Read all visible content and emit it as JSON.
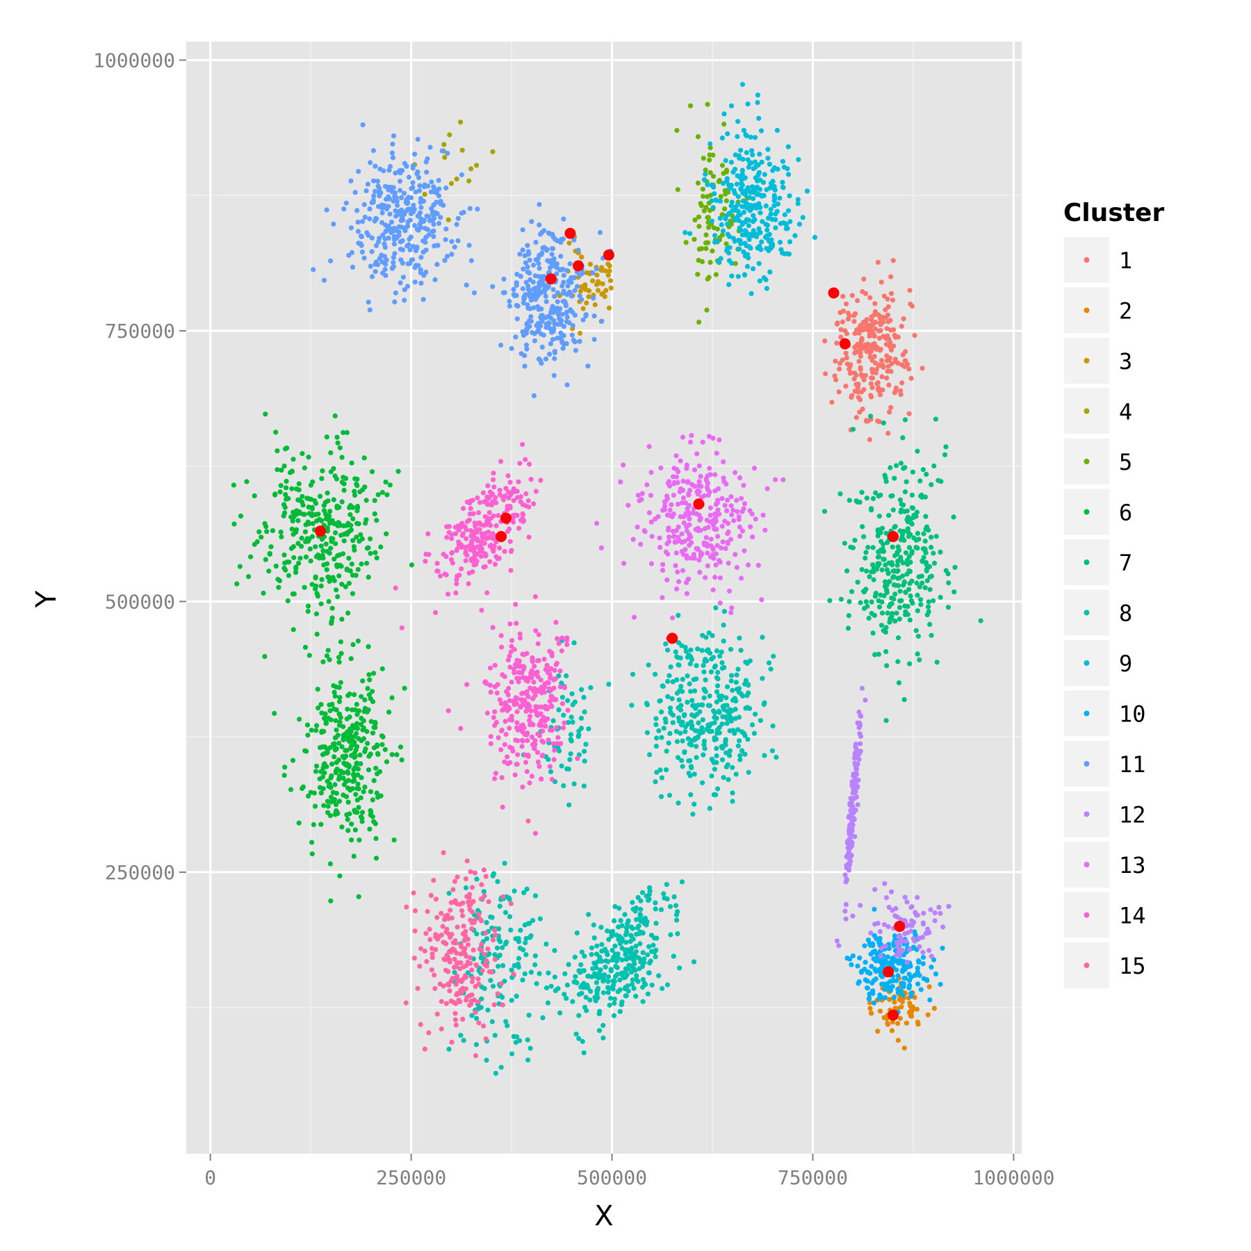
{
  "chart_data": {
    "type": "scatter",
    "title": "",
    "xlabel": "X",
    "ylabel": "Y",
    "xlim": [
      -30000,
      1010000
    ],
    "ylim": [
      -10000,
      1017000
    ],
    "grid": true,
    "x_ticks": [
      0,
      250000,
      500000,
      750000,
      1000000
    ],
    "x_tick_labels": [
      "0",
      "250000",
      "500000",
      "750000",
      "1000000"
    ],
    "y_ticks": [
      250000,
      500000,
      750000,
      1000000
    ],
    "y_tick_labels": [
      "250000",
      "500000",
      "750000",
      "1000000"
    ],
    "legend": {
      "title": "Cluster",
      "position": "right",
      "entries": [
        {
          "label": "1",
          "color": "#F8766D"
        },
        {
          "label": "2",
          "color": "#E58700"
        },
        {
          "label": "3",
          "color": "#C99800"
        },
        {
          "label": "4",
          "color": "#A3A500"
        },
        {
          "label": "5",
          "color": "#6BB100"
        },
        {
          "label": "6",
          "color": "#00BA38"
        },
        {
          "label": "7",
          "color": "#00BF7D"
        },
        {
          "label": "8",
          "color": "#00C0AF"
        },
        {
          "label": "9",
          "color": "#00BCD8"
        },
        {
          "label": "10",
          "color": "#00B0F6"
        },
        {
          "label": "11",
          "color": "#619CFF"
        },
        {
          "label": "12",
          "color": "#B983FF"
        },
        {
          "label": "13",
          "color": "#E76BF3"
        },
        {
          "label": "14",
          "color": "#FD61D1"
        },
        {
          "label": "15",
          "color": "#FF67A4"
        }
      ]
    },
    "clusters": [
      {
        "cluster": "1",
        "center": [
          822000,
          730000
        ],
        "sd": [
          22000,
          28000
        ],
        "rho": 0,
        "n": 260
      },
      {
        "cluster": "2",
        "center": [
          855000,
          125000
        ],
        "sd": [
          18000,
          14000
        ],
        "rho": 0,
        "n": 60
      },
      {
        "cluster": "3",
        "center": [
          470000,
          795000
        ],
        "sd": [
          15000,
          20000
        ],
        "rho": 0,
        "n": 60
      },
      {
        "cluster": "4",
        "center": [
          300000,
          900000
        ],
        "sd": [
          25000,
          25000
        ],
        "rho": 0,
        "n": 15
      },
      {
        "cluster": "5",
        "center": [
          625000,
          860000
        ],
        "sd": [
          18000,
          38000
        ],
        "rho": 0,
        "n": 90
      },
      {
        "cluster": "6a",
        "legend": "6",
        "center": [
          135000,
          565000
        ],
        "sd": [
          40000,
          38000
        ],
        "rho": 0,
        "n": 330
      },
      {
        "cluster": "6b",
        "legend": "6",
        "center": [
          170000,
          355000
        ],
        "sd": [
          25000,
          42000
        ],
        "rho": 0,
        "n": 330
      },
      {
        "cluster": "7",
        "center": [
          855000,
          540000
        ],
        "sd": [
          30000,
          45000
        ],
        "rho": 0,
        "n": 330
      },
      {
        "cluster": "8a",
        "legend": "8",
        "center": [
          620000,
          395000
        ],
        "sd": [
          35000,
          38000
        ],
        "rho": 0,
        "n": 330
      },
      {
        "cluster": "8b",
        "legend": "8",
        "center": [
          510000,
          170000
        ],
        "sd": [
          35000,
          30000
        ],
        "rho": 0.5,
        "n": 300
      },
      {
        "cluster": "8c",
        "legend": "8",
        "center": [
          360000,
          165000
        ],
        "sd": [
          30000,
          40000
        ],
        "rho": 0,
        "n": 150
      },
      {
        "cluster": "8d",
        "legend": "8",
        "center": [
          445000,
          390000
        ],
        "sd": [
          18000,
          28000
        ],
        "rho": 0,
        "n": 60
      },
      {
        "cluster": "9",
        "center": [
          675000,
          865000
        ],
        "sd": [
          25000,
          35000
        ],
        "rho": 0,
        "n": 300
      },
      {
        "cluster": "10",
        "center": [
          850000,
          165000
        ],
        "sd": [
          22000,
          16000
        ],
        "rho": 0,
        "n": 200
      },
      {
        "cluster": "11a",
        "legend": "11",
        "center": [
          240000,
          850000
        ],
        "sd": [
          33000,
          33000
        ],
        "rho": 0,
        "n": 330
      },
      {
        "cluster": "11b",
        "legend": "11",
        "center": [
          420000,
          780000
        ],
        "sd": [
          25000,
          30000
        ],
        "rho": 0,
        "n": 300
      },
      {
        "cluster": "12a",
        "legend": "12",
        "center": [
          800000,
          310000
        ],
        "sd": [
          5000,
          40000
        ],
        "rho": 0.9,
        "n": 150
      },
      {
        "cluster": "12b",
        "legend": "12",
        "center": [
          865000,
          200000
        ],
        "sd": [
          25000,
          15000
        ],
        "rho": 0,
        "n": 80
      },
      {
        "cluster": "13",
        "center": [
          605000,
          575000
        ],
        "sd": [
          38000,
          32000
        ],
        "rho": 0,
        "n": 300
      },
      {
        "cluster": "14a",
        "legend": "14",
        "center": [
          340000,
          565000
        ],
        "sd": [
          30000,
          25000
        ],
        "rho": 0.6,
        "n": 260
      },
      {
        "cluster": "14b",
        "legend": "14",
        "center": [
          395000,
          405000
        ],
        "sd": [
          25000,
          35000
        ],
        "rho": 0,
        "n": 300
      },
      {
        "cluster": "15",
        "center": [
          310000,
          175000
        ],
        "sd": [
          25000,
          40000
        ],
        "rho": 0,
        "n": 220
      }
    ],
    "centroids": [
      {
        "x": 790000,
        "y": 738000
      },
      {
        "x": 776000,
        "y": 785000
      },
      {
        "x": 448000,
        "y": 840000
      },
      {
        "x": 496000,
        "y": 820000
      },
      {
        "x": 458000,
        "y": 810000
      },
      {
        "x": 424000,
        "y": 798000
      },
      {
        "x": 137000,
        "y": 565000
      },
      {
        "x": 368000,
        "y": 577000
      },
      {
        "x": 362000,
        "y": 560000
      },
      {
        "x": 608000,
        "y": 590000
      },
      {
        "x": 850000,
        "y": 560000
      },
      {
        "x": 575000,
        "y": 466000
      },
      {
        "x": 858000,
        "y": 200000
      },
      {
        "x": 844000,
        "y": 158000
      },
      {
        "x": 850000,
        "y": 118000
      }
    ],
    "centroid_color": "#FF0000"
  }
}
